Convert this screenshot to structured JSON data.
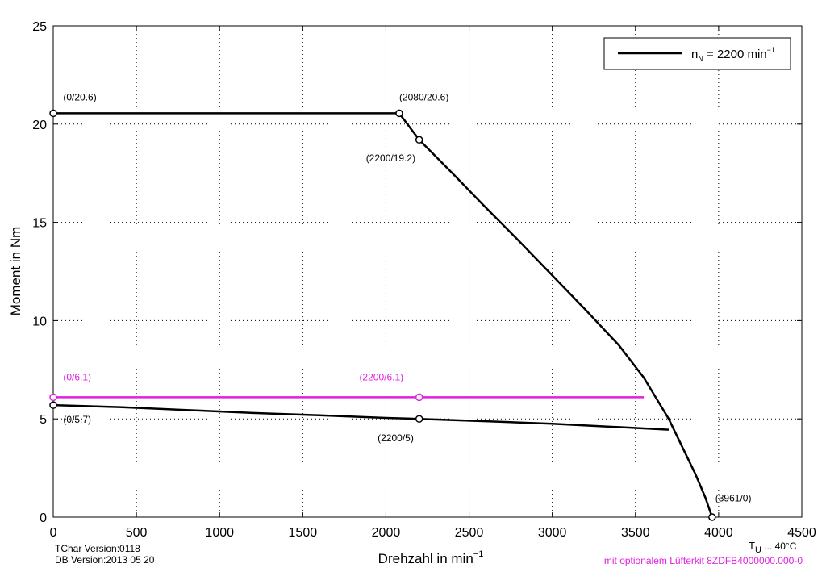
{
  "chart_data": {
    "type": "line",
    "xlabel": "Drehzahl in min",
    "xlabel_sup": "−1",
    "ylabel": "Moment in Nm",
    "xlim": [
      0,
      4500
    ],
    "ylim": [
      0,
      25
    ],
    "xticks": [
      0,
      500,
      1000,
      1500,
      2000,
      2500,
      3000,
      3500,
      4000,
      4500
    ],
    "yticks": [
      0,
      5,
      10,
      15,
      20,
      25
    ],
    "grid": true,
    "legend": {
      "placement": "top-right",
      "prefix": "n",
      "subscript": "N",
      "text": " = 2200 min",
      "superscript": "−1"
    },
    "colors": {
      "black": "#000000",
      "magenta": "#e020e0"
    },
    "series": [
      {
        "id": "peak",
        "color": "#000000",
        "points": [
          [
            0,
            20.55
          ],
          [
            2080,
            20.55
          ],
          [
            2200,
            19.2
          ],
          [
            2400,
            17.5
          ],
          [
            2600,
            15.75
          ],
          [
            2800,
            14.05
          ],
          [
            3000,
            12.3
          ],
          [
            3200,
            10.55
          ],
          [
            3400,
            8.75
          ],
          [
            3550,
            7.1
          ],
          [
            3700,
            5.0
          ],
          [
            3780,
            3.6
          ],
          [
            3860,
            2.2
          ],
          [
            3920,
            1.0
          ],
          [
            3961,
            0
          ]
        ]
      },
      {
        "id": "continuous",
        "color": "#000000",
        "points": [
          [
            0,
            5.7
          ],
          [
            400,
            5.6
          ],
          [
            800,
            5.45
          ],
          [
            1200,
            5.3
          ],
          [
            1600,
            5.18
          ],
          [
            2000,
            5.05
          ],
          [
            2200,
            5.0
          ],
          [
            2600,
            4.88
          ],
          [
            3000,
            4.75
          ],
          [
            3400,
            4.58
          ],
          [
            3700,
            4.45
          ]
        ]
      },
      {
        "id": "fan",
        "color": "#e020e0",
        "points": [
          [
            0,
            6.1
          ],
          [
            2200,
            6.1
          ],
          [
            3550,
            6.1
          ]
        ]
      }
    ],
    "markers": [
      {
        "x": 0,
        "y": 20.55,
        "color": "#000000"
      },
      {
        "x": 2080,
        "y": 20.55,
        "color": "#000000"
      },
      {
        "x": 2200,
        "y": 19.2,
        "color": "#000000"
      },
      {
        "x": 3961,
        "y": 0,
        "color": "#000000"
      },
      {
        "x": 0,
        "y": 5.7,
        "color": "#000000"
      },
      {
        "x": 2200,
        "y": 5.0,
        "color": "#000000"
      },
      {
        "x": 0,
        "y": 6.1,
        "color": "#e020e0"
      },
      {
        "x": 2200,
        "y": 6.1,
        "color": "#e020e0"
      }
    ],
    "annotations": [
      {
        "text": "(0/20.6)",
        "x": 60,
        "y": 21.2,
        "color": "#000000"
      },
      {
        "text": "(2080/20.6)",
        "x": 2080,
        "y": 21.2,
        "color": "#000000"
      },
      {
        "text": "(2200/19.2)",
        "x": 1880,
        "y": 18.1,
        "color": "#000000"
      },
      {
        "text": "(3961/0)",
        "x": 3980,
        "y": 0.8,
        "color": "#000000"
      },
      {
        "text": "(0/5.7)",
        "x": 60,
        "y": 4.8,
        "color": "#000000"
      },
      {
        "text": "(2200/5)",
        "x": 1950,
        "y": 3.85,
        "color": "#000000"
      },
      {
        "text": "(0/6.1)",
        "x": 60,
        "y": 6.95,
        "color": "#e020e0"
      },
      {
        "text": "(2200/6.1)",
        "x": 1840,
        "y": 6.95,
        "color": "#e020e0"
      }
    ]
  },
  "footer": {
    "tchar": "TChar Version:0118",
    "db": "DB Version:2013 05 20",
    "tu_main": "T",
    "tu_sub": "U",
    "tu_rest": " ... 40°C",
    "fan_note": "mit optionalem Lüfterkit 8ZDFB4000000.000-0"
  }
}
